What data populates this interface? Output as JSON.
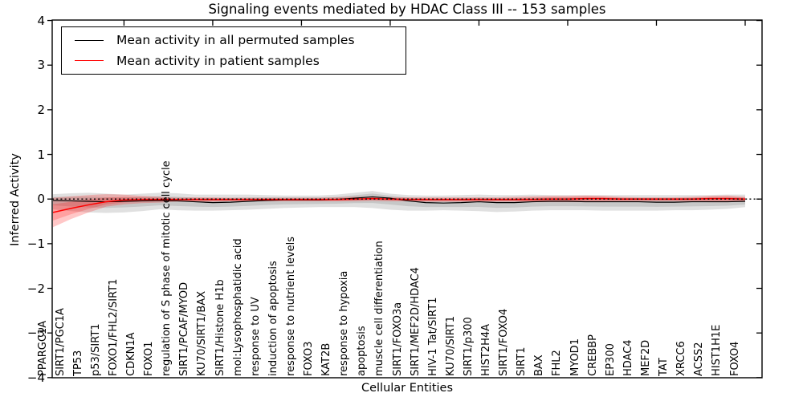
{
  "figure": {
    "title": "Signaling events mediated by HDAC Class III -- 153 samples",
    "xlabel": "Cellular Entities",
    "ylabel": "Inferred Activity",
    "background_color": "#ffffff",
    "frame_color": "#000000"
  },
  "legend": {
    "position": "upper-left",
    "items": [
      {
        "label": "Mean activity in all permuted samples",
        "color": "#000000"
      },
      {
        "label": "Mean activity in patient samples",
        "color": "#ff0000"
      }
    ]
  },
  "axes": {
    "y_tick_labels": [
      "4",
      "3",
      "2",
      "1",
      "0",
      "−1",
      "−2",
      "−3",
      "−4"
    ],
    "y_tick_values": [
      4,
      3,
      2,
      1,
      0,
      -1,
      -2,
      -3,
      -4
    ],
    "ylim": [
      -4,
      4
    ],
    "grid": "off",
    "zero_line_style": "dotted"
  },
  "chart_data": {
    "type": "line",
    "title": "Signaling events mediated by HDAC Class III -- 153 samples",
    "xlabel": "Cellular Entities",
    "ylabel": "Inferred Activity",
    "ylim": [
      -4,
      4
    ],
    "legend_position": "upper-left",
    "categories": [
      "PPARGC1A",
      "SIRT1/PGC1A",
      "TP53",
      "p53/SIRT1",
      "FOXO1/FHL2/SIRT1",
      "CDKN1A",
      "FOXO1",
      "regulation of S phase of mitotic cell cycle",
      "SIRT1/PCAF/MYOD",
      "KU70/SIRT1/BAX",
      "SIRT1/Histone H1b",
      "mol:Lysophosphatidic acid",
      "response to UV",
      "induction of apoptosis",
      "response to nutrient levels",
      "FOXO3",
      "KAT2B",
      "response to hypoxia",
      "apoptosis",
      "muscle cell differentiation",
      "SIRT1/FOXO3a",
      "SIRT1/MEF2D/HDAC4",
      "HIV-1 Tat/SIRT1",
      "KU70/SIRT1",
      "SIRT1/p300",
      "HIST2H4A",
      "SIRT1/FOXO4",
      "SIRT1",
      "BAX",
      "FHL2",
      "MYOD1",
      "CREBBP",
      "EP300",
      "HDAC4",
      "MEF2D",
      "TAT",
      "XRCC6",
      "ACSS2",
      "HIST1H1E",
      "FOXO4"
    ],
    "series": [
      {
        "name": "Mean activity in all permuted samples",
        "color": "#000000",
        "values": [
          -0.03,
          -0.04,
          -0.05,
          -0.06,
          -0.05,
          -0.04,
          -0.03,
          -0.04,
          -0.06,
          -0.08,
          -0.07,
          -0.05,
          -0.03,
          -0.02,
          -0.02,
          -0.02,
          -0.01,
          0.02,
          0.05,
          0.02,
          -0.04,
          -0.08,
          -0.09,
          -0.08,
          -0.06,
          -0.08,
          -0.08,
          -0.06,
          -0.05,
          -0.05,
          -0.06,
          -0.06,
          -0.06,
          -0.06,
          -0.07,
          -0.07,
          -0.06,
          -0.06,
          -0.06,
          -0.05
        ]
      },
      {
        "name": "Mean activity in patient samples",
        "color": "#ff0000",
        "values": [
          -0.3,
          -0.21,
          -0.13,
          -0.06,
          -0.02,
          -0.01,
          -0.01,
          -0.01,
          -0.01,
          -0.01,
          -0.01,
          -0.01,
          -0.01,
          -0.01,
          -0.01,
          -0.01,
          -0.01,
          0.0,
          0.01,
          0.0,
          -0.01,
          -0.01,
          -0.01,
          -0.01,
          -0.01,
          -0.01,
          -0.01,
          -0.01,
          0.0,
          0.0,
          0.01,
          0.01,
          0.0,
          0.0,
          0.0,
          0.0,
          0.0,
          0.01,
          0.01,
          0.0
        ]
      }
    ],
    "bands": [
      {
        "name": "permuted samples std band",
        "color": "#000000",
        "fill_opacity": 0.12,
        "upper": [
          0.11,
          0.13,
          0.14,
          0.12,
          0.1,
          0.12,
          0.14,
          0.13,
          0.1,
          0.1,
          0.1,
          0.1,
          0.09,
          0.08,
          0.08,
          0.08,
          0.1,
          0.14,
          0.18,
          0.12,
          0.09,
          0.08,
          0.08,
          0.09,
          0.1,
          0.09,
          0.09,
          0.1,
          0.09,
          0.09,
          0.09,
          0.09,
          0.09,
          0.09,
          0.09,
          0.09,
          0.09,
          0.09,
          0.1,
          0.1
        ],
        "lower": [
          -0.23,
          -0.27,
          -0.3,
          -0.31,
          -0.3,
          -0.27,
          -0.23,
          -0.25,
          -0.26,
          -0.26,
          -0.25,
          -0.24,
          -0.22,
          -0.2,
          -0.19,
          -0.18,
          -0.18,
          -0.18,
          -0.2,
          -0.24,
          -0.26,
          -0.26,
          -0.25,
          -0.26,
          -0.27,
          -0.29,
          -0.28,
          -0.26,
          -0.25,
          -0.25,
          -0.25,
          -0.26,
          -0.26,
          -0.26,
          -0.26,
          -0.25,
          -0.25,
          -0.24,
          -0.22,
          -0.18
        ]
      },
      {
        "name": "patient samples std band",
        "color": "#ff0000",
        "fill_opacity": 0.22,
        "upper": [
          0.03,
          0.06,
          0.09,
          0.11,
          0.1,
          0.07,
          0.05,
          0.03,
          0.04,
          0.04,
          0.03,
          0.03,
          0.03,
          0.03,
          0.03,
          0.03,
          0.04,
          0.05,
          0.05,
          0.04,
          0.04,
          0.04,
          0.04,
          0.04,
          0.04,
          0.04,
          0.05,
          0.06,
          0.07,
          0.07,
          0.08,
          0.07,
          0.05,
          0.04,
          0.04,
          0.04,
          0.05,
          0.07,
          0.08,
          0.05
        ],
        "lower": [
          -0.63,
          -0.45,
          -0.3,
          -0.17,
          -0.12,
          -0.09,
          -0.08,
          -0.06,
          -0.06,
          -0.06,
          -0.05,
          -0.05,
          -0.05,
          -0.05,
          -0.05,
          -0.05,
          -0.05,
          -0.05,
          -0.04,
          -0.05,
          -0.05,
          -0.06,
          -0.06,
          -0.06,
          -0.06,
          -0.06,
          -0.06,
          -0.07,
          -0.07,
          -0.07,
          -0.07,
          -0.07,
          -0.06,
          -0.05,
          -0.05,
          -0.05,
          -0.06,
          -0.07,
          -0.07,
          -0.06
        ]
      }
    ],
    "zero_line": {
      "y": 0,
      "color": "#000000",
      "style": "dotted"
    }
  }
}
